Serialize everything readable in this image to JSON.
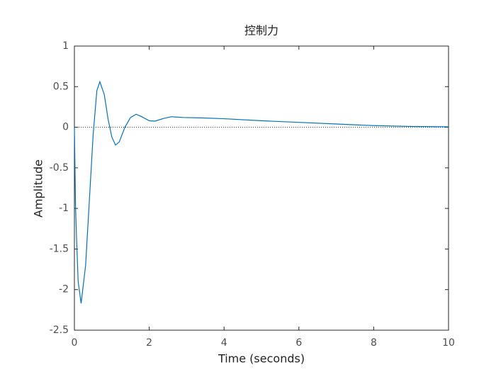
{
  "chart_data": {
    "type": "line",
    "title": "控制力",
    "x_label": "Time (seconds)",
    "y_label": "Amplitude",
    "xlim": [
      0,
      10
    ],
    "ylim": [
      -2.5,
      1
    ],
    "xticks": [
      0,
      2,
      4,
      6,
      8,
      10
    ],
    "yticks": [
      -2.5,
      -2,
      -1.5,
      -1,
      -0.5,
      0,
      0.5,
      1
    ],
    "series": [
      {
        "color": "#0072bd",
        "x": [
          0,
          0.03,
          0.06,
          0.1,
          0.18,
          0.3,
          0.4,
          0.5,
          0.6,
          0.68,
          0.8,
          0.9,
          1.0,
          1.1,
          1.2,
          1.35,
          1.5,
          1.65,
          1.8,
          2.0,
          2.15,
          2.4,
          2.6,
          2.9,
          3.4,
          4,
          5,
          6,
          7,
          8,
          9,
          10
        ],
        "values": [
          0,
          -0.96,
          -1.4,
          -1.9,
          -2.17,
          -1.7,
          -0.9,
          -0.1,
          0.45,
          0.56,
          0.4,
          0.1,
          -0.12,
          -0.22,
          -0.18,
          0.0,
          0.12,
          0.16,
          0.13,
          0.08,
          0.075,
          0.11,
          0.13,
          0.12,
          0.115,
          0.105,
          0.08,
          0.06,
          0.04,
          0.02,
          0.01,
          0.005
        ]
      }
    ]
  }
}
